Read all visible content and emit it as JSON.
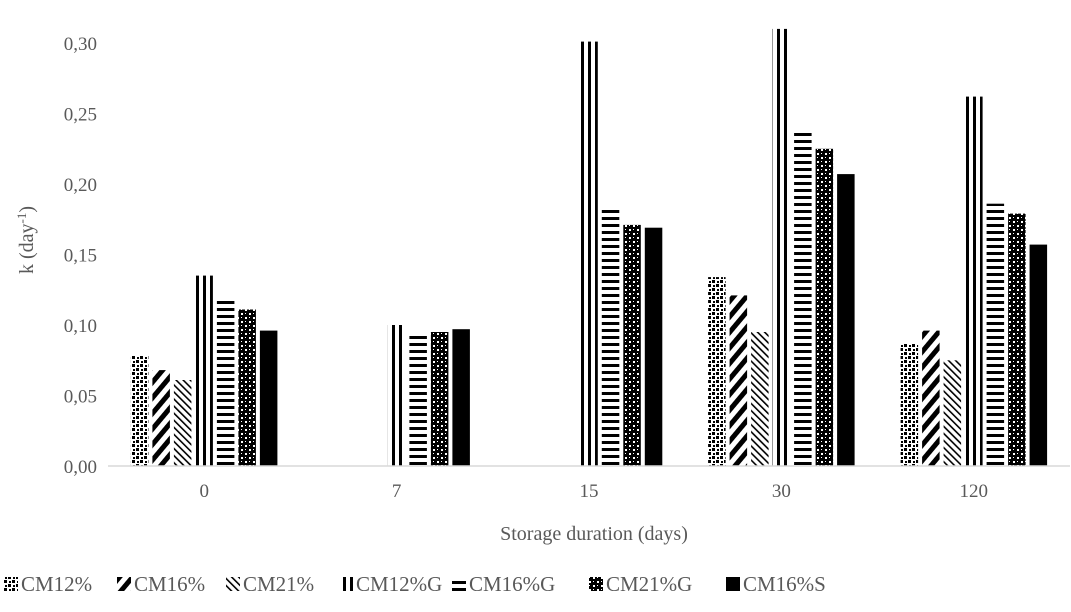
{
  "chart_data": {
    "type": "bar",
    "title": "",
    "xlabel": "Storage duration (days)",
    "ylabel": {
      "main": "k (day",
      "sup": "-1",
      "end": ")"
    },
    "categories": [
      "0",
      "7",
      "15",
      "30",
      "120"
    ],
    "ylim": [
      0,
      0.3
    ],
    "yticks": [
      "0,00",
      "0,05",
      "0,10",
      "0,15",
      "0,20",
      "0,25",
      "0,30"
    ],
    "grid": false,
    "legend_position": "bottom",
    "series": [
      {
        "name": "CM12%",
        "pattern": "dots",
        "values": [
          0.078,
          null,
          null,
          0.134,
          0.087
        ]
      },
      {
        "name": "CM16%",
        "pattern": "diag-wide",
        "values": [
          0.068,
          null,
          null,
          0.121,
          0.096
        ]
      },
      {
        "name": "CM21%",
        "pattern": "diag-thin",
        "values": [
          0.061,
          null,
          null,
          0.095,
          0.075
        ]
      },
      {
        "name": "CM12%G",
        "pattern": "vertical",
        "values": [
          0.135,
          0.1,
          0.301,
          0.31,
          0.262
        ]
      },
      {
        "name": "CM16%G",
        "pattern": "horizontal",
        "values": [
          0.118,
          0.095,
          0.182,
          0.237,
          0.186
        ]
      },
      {
        "name": "CM21%G",
        "pattern": "checker",
        "values": [
          0.111,
          0.095,
          0.171,
          0.225,
          0.179
        ]
      },
      {
        "name": "CM16%S",
        "pattern": "solid",
        "values": [
          0.096,
          0.097,
          0.169,
          0.207,
          0.157
        ]
      }
    ]
  }
}
